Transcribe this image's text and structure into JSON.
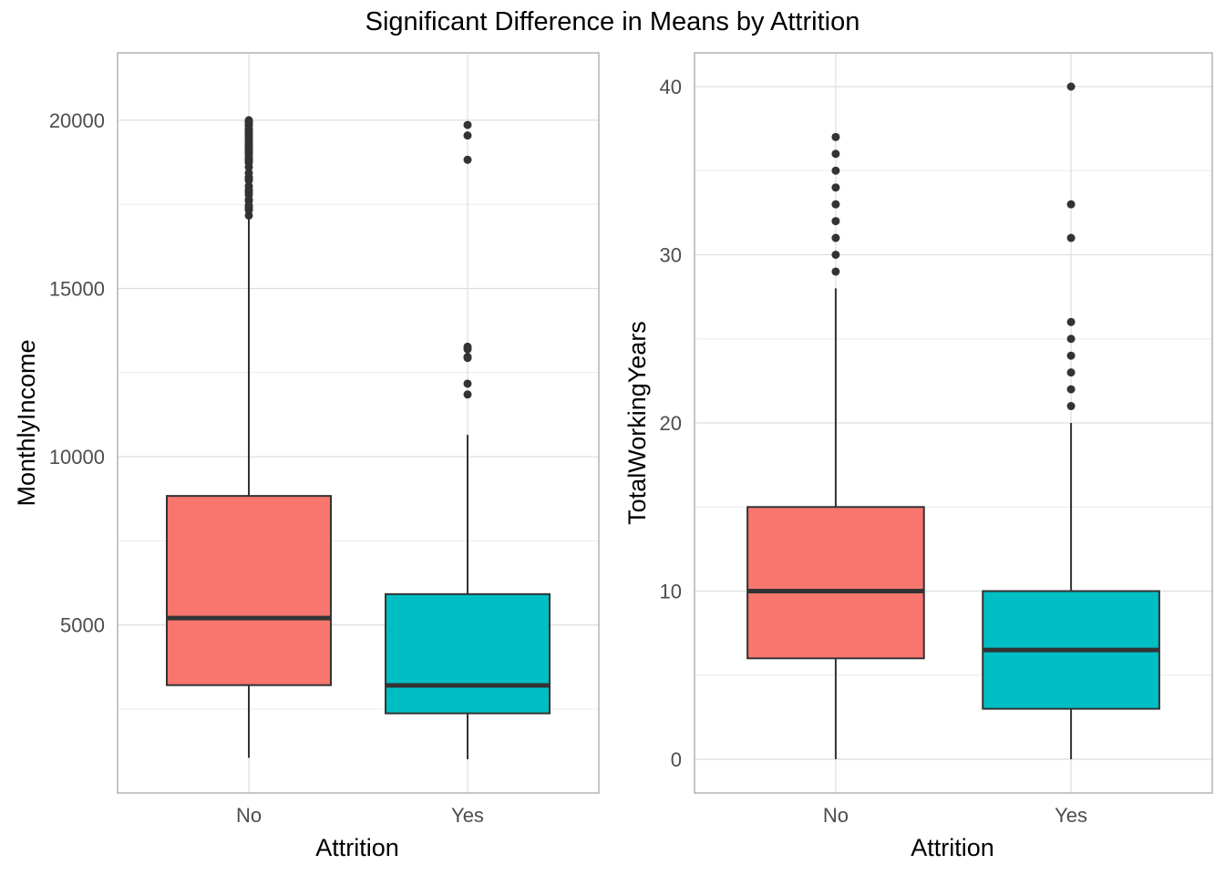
{
  "title": "Significant Difference in Means by Attrition",
  "colors": {
    "No": "#F8766D",
    "Yes": "#00BFC4"
  },
  "chart_data": [
    {
      "type": "box",
      "xlabel": "Attrition",
      "ylabel": "MonthlyIncome",
      "categories": [
        "No",
        "Yes"
      ],
      "ylim": [
        1009,
        20999
      ],
      "y_ticks": [
        5000,
        10000,
        15000,
        20000
      ],
      "y_tick_labels": [
        "5000",
        "10000",
        "15000",
        "20000"
      ],
      "grid": true,
      "boxes": [
        {
          "category": "No",
          "min": 1051,
          "q1": 3211,
          "median": 5204,
          "q3": 8834,
          "max": 17159,
          "outliers": [
            17169,
            17328,
            17399,
            17426,
            17465,
            17603,
            17639,
            17779,
            17856,
            17924,
            18041,
            18213,
            18265,
            18303,
            18430,
            18606,
            18740,
            18789,
            18824,
            18844,
            18880,
            18947,
            19033,
            19045,
            19094,
            19141,
            19161,
            19189,
            19232,
            19272,
            19328,
            19392,
            19406,
            19431,
            19502,
            19545,
            19586,
            19626,
            19665,
            19701,
            19740,
            19833,
            19845,
            19926,
            19943,
            19973,
            19999
          ]
        },
        {
          "category": "Yes",
          "min": 1009,
          "q1": 2373,
          "median": 3202,
          "q3": 5916,
          "max": 10650,
          "outliers": [
            11849,
            12169,
            12936,
            12965,
            13194,
            13269,
            18824,
            19545,
            19859
          ]
        }
      ]
    },
    {
      "type": "box",
      "xlabel": "Attrition",
      "ylabel": "TotalWorkingYears",
      "categories": [
        "No",
        "Yes"
      ],
      "ylim": [
        0,
        40
      ],
      "y_ticks": [
        0,
        10,
        20,
        30,
        40
      ],
      "y_tick_labels": [
        "0",
        "10",
        "20",
        "30",
        "40"
      ],
      "grid": true,
      "boxes": [
        {
          "category": "No",
          "min": 0,
          "q1": 6,
          "median": 10,
          "q3": 15,
          "max": 28,
          "outliers": [
            29,
            30,
            31,
            32,
            33,
            34,
            35,
            36,
            37
          ]
        },
        {
          "category": "Yes",
          "min": 0,
          "q1": 3,
          "median": 6.5,
          "q3": 10,
          "max": 20,
          "outliers": [
            21,
            22,
            23,
            24,
            25,
            26,
            31,
            33,
            40
          ]
        }
      ]
    }
  ]
}
